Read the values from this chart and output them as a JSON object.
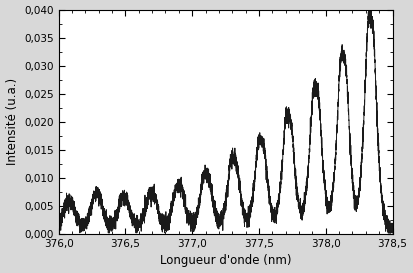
{
  "xlim": [
    376.0,
    378.5
  ],
  "ylim": [
    0.0,
    0.04
  ],
  "xlabel": "Longueur d'onde (nm)",
  "ylabel": "Intensité (u.a.)",
  "xticks": [
    376.0,
    376.5,
    377.0,
    377.5,
    378.0,
    378.5
  ],
  "yticks": [
    0.0,
    0.005,
    0.01,
    0.015,
    0.02,
    0.025,
    0.03,
    0.035,
    0.04
  ],
  "line_color": "#1a1a1a",
  "line_width": 0.7,
  "background_color": "#d8d8d8",
  "plot_bg_color": "#ffffff"
}
